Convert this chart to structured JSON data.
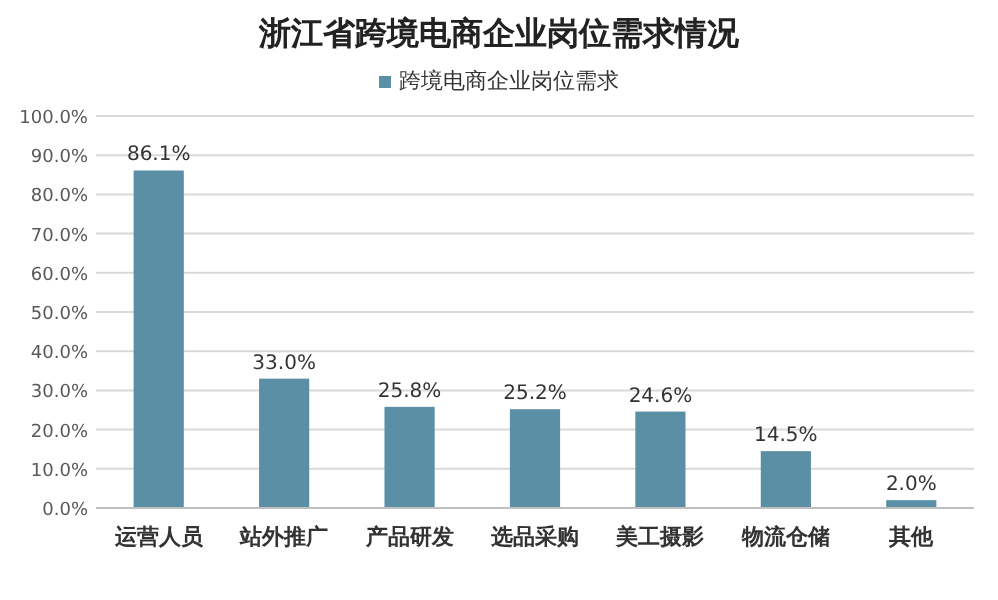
{
  "chart_data": {
    "type": "bar",
    "title": "浙江省跨境电商企业岗位需求情况",
    "categories": [
      "运营人员",
      "站外推广",
      "产品研发",
      "选品采购",
      "美工摄影",
      "物流仓储",
      "其他"
    ],
    "series": [
      {
        "name": "跨境电商企业岗位需求",
        "color": "#5a8fa6",
        "values": [
          86.1,
          33.0,
          25.8,
          25.2,
          24.6,
          14.5,
          2.0
        ],
        "value_labels": [
          "86.1%",
          "33.0%",
          "25.8%",
          "25.2%",
          "24.6%",
          "14.5%",
          "2.0%"
        ]
      }
    ],
    "ylim": [
      0,
      100
    ],
    "yticks": [
      {
        "value": 0,
        "label": "0.0%"
      },
      {
        "value": 10,
        "label": "10.0%"
      },
      {
        "value": 20,
        "label": "20.0%"
      },
      {
        "value": 30,
        "label": "30.0%"
      },
      {
        "value": 40,
        "label": "40.0%"
      },
      {
        "value": 50,
        "label": "50.0%"
      },
      {
        "value": 60,
        "label": "60.0%"
      },
      {
        "value": 70,
        "label": "70.0%"
      },
      {
        "value": 80,
        "label": "80.0%"
      },
      {
        "value": 90,
        "label": "90.0%"
      },
      {
        "value": 100,
        "label": "100.0%"
      }
    ],
    "grid": "y",
    "legend": "top"
  }
}
